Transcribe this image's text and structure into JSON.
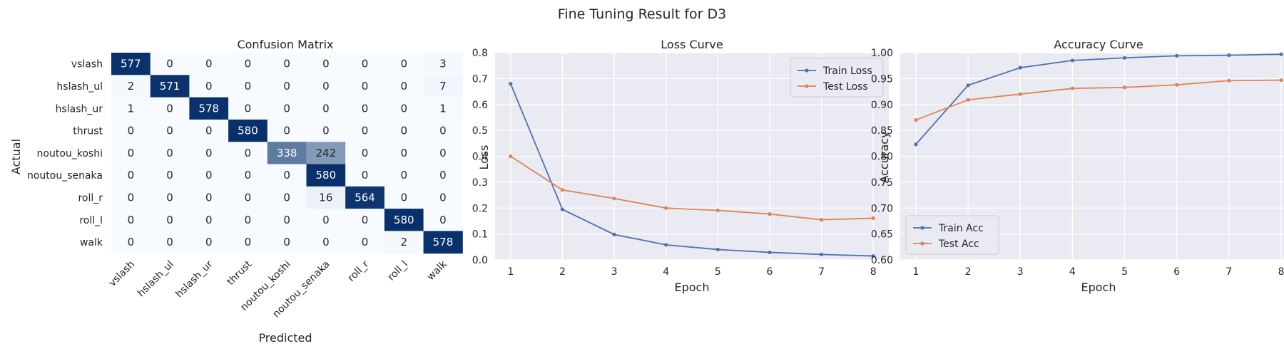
{
  "figure": {
    "title": "Fine Tuning Result for D3"
  },
  "chart_data": [
    {
      "type": "heatmap",
      "title": "Confusion Matrix",
      "xlabel": "Predicted",
      "ylabel": "Actual",
      "labels": [
        "vslash",
        "hslash_ul",
        "hslash_ur",
        "thrust",
        "noutou_koshi",
        "noutou_senaka",
        "roll_r",
        "roll_l",
        "walk"
      ],
      "matrix": [
        [
          577,
          0,
          0,
          0,
          0,
          0,
          0,
          0,
          3
        ],
        [
          2,
          571,
          0,
          0,
          0,
          0,
          0,
          0,
          7
        ],
        [
          1,
          0,
          578,
          0,
          0,
          0,
          0,
          0,
          1
        ],
        [
          0,
          0,
          0,
          580,
          0,
          0,
          0,
          0,
          0
        ],
        [
          0,
          0,
          0,
          0,
          338,
          242,
          0,
          0,
          0
        ],
        [
          0,
          0,
          0,
          0,
          0,
          580,
          0,
          0,
          0
        ],
        [
          0,
          0,
          0,
          0,
          0,
          16,
          564,
          0,
          0
        ],
        [
          0,
          0,
          0,
          0,
          0,
          0,
          0,
          580,
          0
        ],
        [
          0,
          0,
          0,
          0,
          0,
          0,
          0,
          2,
          578
        ]
      ],
      "colormap": "Blues",
      "colors": {
        "low": "#f7fbff",
        "high": "#08306b"
      }
    },
    {
      "type": "line",
      "title": "Loss Curve",
      "xlabel": "Epoch",
      "ylabel": "Loss",
      "x": [
        1,
        2,
        3,
        4,
        5,
        6,
        7,
        8
      ],
      "xticks": [
        1,
        2,
        3,
        4,
        5,
        6,
        7,
        8
      ],
      "ylim": [
        0,
        0.8
      ],
      "yticks": [
        0.0,
        0.1,
        0.2,
        0.3,
        0.4,
        0.5,
        0.6,
        0.7,
        0.8
      ],
      "grid": true,
      "legend": "upper right",
      "series": [
        {
          "name": "Train Loss",
          "color": "#4c72b0",
          "values": [
            0.68,
            0.195,
            0.098,
            0.058,
            0.04,
            0.029,
            0.021,
            0.015
          ]
        },
        {
          "name": "Test Loss",
          "color": "#dd8452",
          "values": [
            0.4,
            0.27,
            0.237,
            0.2,
            0.191,
            0.177,
            0.155,
            0.161
          ]
        }
      ]
    },
    {
      "type": "line",
      "title": "Accuracy Curve",
      "xlabel": "Epoch",
      "ylabel": "Accuracy",
      "x": [
        1,
        2,
        3,
        4,
        5,
        6,
        7,
        8
      ],
      "xticks": [
        1,
        2,
        3,
        4,
        5,
        6,
        7,
        8
      ],
      "ylim": [
        0.6,
        1.0
      ],
      "yticks": [
        0.6,
        0.65,
        0.7,
        0.75,
        0.8,
        0.85,
        0.9,
        0.95,
        1.0
      ],
      "grid": true,
      "legend": "lower left",
      "series": [
        {
          "name": "Train Acc",
          "color": "#4c72b0",
          "values": [
            0.823,
            0.937,
            0.971,
            0.985,
            0.99,
            0.994,
            0.995,
            0.997
          ]
        },
        {
          "name": "Test Acc",
          "color": "#dd8452",
          "values": [
            0.87,
            0.909,
            0.92,
            0.931,
            0.933,
            0.938,
            0.946,
            0.947
          ]
        }
      ]
    }
  ]
}
